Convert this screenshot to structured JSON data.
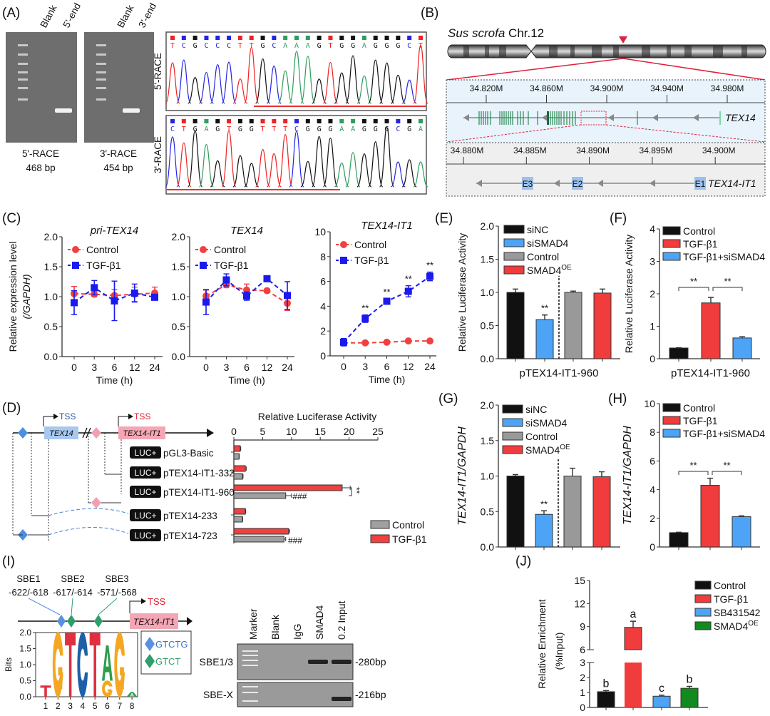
{
  "panels": {
    "A": "(A)",
    "B": "(B)",
    "C": "(C)",
    "D": "(D)",
    "E": "(E)",
    "F": "(F)",
    "G": "(G)",
    "H": "(H)",
    "I": "(I)",
    "J": "(J)"
  },
  "panel_a": {
    "gel1_lanes": [
      "Blank",
      "5'-end"
    ],
    "gel2_lanes": [
      "Blank",
      "3'-end"
    ],
    "gel1_caption": [
      "5'-RACE",
      "468 bp"
    ],
    "gel2_caption": [
      "3'-RACE",
      "454 bp"
    ],
    "race5_label": "5'-RACE",
    "race3_label": "3'-RACE",
    "race5_sequence": "TCGCCCTTGCAAAGTGGAGGGCT",
    "race3_sequence": "CTGAGTGGTTTCGGGAAGGGCGA",
    "base_colors": {
      "A": "#2e9e5b",
      "C": "#2424e6",
      "G": "#111111",
      "T": "#ee2222"
    }
  },
  "panel_b": {
    "species": "Sus scrofa",
    "chromosome": "Chr.12",
    "track1_ticks": [
      "34.820M",
      "34.860M",
      "34.900M",
      "34.940M",
      "34.980M"
    ],
    "track1_gene": "TEX14",
    "track2_ticks": [
      "34.880M",
      "34.885M",
      "34.890M",
      "34.895M",
      "34.900M"
    ],
    "track2_gene": "TEX14-IT1",
    "exons": [
      "E3",
      "E2",
      "E1"
    ]
  },
  "panel_d": {
    "tss": "TSS",
    "gene1": "TEX14",
    "gene2": "TEX14-IT1",
    "luc": "LUC+"
  },
  "panel_i": {
    "sbe": [
      {
        "name": "SBE1",
        "pos": "-622/-618"
      },
      {
        "name": "SBE2",
        "pos": "-617/-614"
      },
      {
        "name": "SBE3",
        "pos": "-571/-568"
      }
    ],
    "tss": "TSS",
    "gene": "TEX14-IT1",
    "logo_ylabel": "Bits",
    "logo_yticks": [
      "0.0",
      "0.5",
      "1.0",
      "1.5",
      "2.0"
    ],
    "logo_xticks": [
      "1",
      "2",
      "3",
      "4",
      "5",
      "6",
      "7",
      "8"
    ],
    "motif_legend": [
      {
        "label": "GTCTG",
        "color": "#5b8fe0"
      },
      {
        "label": "GTCT",
        "color": "#2e9e6b"
      }
    ],
    "gel_lanes": [
      "Marker",
      "Blank",
      "IgG",
      "SMAD4",
      "0.2 Input"
    ],
    "gel_rows": [
      {
        "label": "SBE1/3",
        "size": "-280bp"
      },
      {
        "label": "SBE-X",
        "size": "-216bp"
      }
    ]
  },
  "chart_data": [
    {
      "id": "C1",
      "type": "line",
      "title": "pri-TEX14",
      "xlabel": "Time (h)",
      "ylabel": "Relative expression level",
      "ylabel2": "(/GAPDH)",
      "categories": [
        "0",
        "3",
        "6",
        "12",
        "24"
      ],
      "ylim": [
        0,
        2
      ],
      "yticks": [
        "0.0",
        "0.5",
        "1.0",
        "1.5",
        "2.0"
      ],
      "legend": "top-left",
      "series": [
        {
          "name": "Control",
          "color": "#f04040",
          "marker": "circle",
          "values": [
            1.05,
            1.04,
            1.02,
            1.04,
            1.06
          ],
          "errors": [
            0.12,
            0.04,
            0.1,
            0.12,
            0.1
          ]
        },
        {
          "name": "TGF-β1",
          "color": "#1a1aee",
          "marker": "square",
          "values": [
            0.9,
            1.15,
            0.93,
            1.06,
            0.99
          ],
          "errors": [
            0.2,
            0.12,
            0.33,
            0.15,
            0.04
          ]
        }
      ]
    },
    {
      "id": "C2",
      "type": "line",
      "title": "TEX14",
      "xlabel": "Time (h)",
      "categories": [
        "0",
        "3",
        "6",
        "12",
        "24"
      ],
      "ylim": [
        0,
        2
      ],
      "yticks": [
        "0.0",
        "0.5",
        "1.0",
        "1.5",
        "2.0"
      ],
      "legend": "top-left",
      "series": [
        {
          "name": "Control",
          "color": "#f04040",
          "marker": "circle",
          "values": [
            1.01,
            1.2,
            1.11,
            1.1,
            0.89
          ],
          "errors": [
            0.1,
            0.05,
            0.1,
            0.03,
            0.12
          ]
        },
        {
          "name": "TGF-β1",
          "color": "#1a1aee",
          "marker": "square",
          "values": [
            0.91,
            1.28,
            1.01,
            1.3,
            1.02
          ],
          "errors": [
            0.21,
            0.1,
            0.07,
            0.03,
            0.23
          ]
        }
      ]
    },
    {
      "id": "C3",
      "type": "line",
      "title": "TEX14-IT1",
      "xlabel": "Time (h)",
      "categories": [
        "0",
        "3",
        "6",
        "12",
        "24"
      ],
      "ylim": [
        0,
        10
      ],
      "yticks": [
        "0",
        "2",
        "4",
        "6",
        "8",
        "10"
      ],
      "legend": "top-left",
      "annotations": [
        "",
        "**",
        "**",
        "**",
        "**"
      ],
      "series": [
        {
          "name": "Control",
          "color": "#f04040",
          "marker": "circle",
          "values": [
            1.05,
            1.05,
            1.1,
            1.2,
            1.2
          ],
          "errors": [
            0.05,
            0.05,
            0.05,
            0.05,
            0.05
          ]
        },
        {
          "name": "TGF-β1",
          "color": "#1a1aee",
          "marker": "square",
          "values": [
            1.1,
            3.0,
            4.4,
            5.2,
            6.4
          ],
          "errors": [
            0.3,
            0.3,
            0.2,
            0.45,
            0.35
          ]
        }
      ]
    },
    {
      "id": "D",
      "type": "bar",
      "orientation": "horizontal",
      "title": "Relative Luciferase Activity",
      "categories": [
        "pGL3-Basic",
        "pTEX14-IT1-332",
        "pTEX14-IT1-960",
        "pTEX14-233",
        "pTEX14-723"
      ],
      "xlim": [
        0,
        25
      ],
      "xticks": [
        "0",
        "5",
        "10",
        "15",
        "20",
        "25"
      ],
      "legend": "bottom-right",
      "series": [
        {
          "name": "TGF-β1",
          "color": "#f04040",
          "values": [
            1.1,
            2.0,
            18.8,
            2.0,
            9.5
          ],
          "errors": [
            0.1,
            0.15,
            1.4,
            0.05,
            0.2
          ]
        },
        {
          "name": "Control",
          "color": "#a0a0a0",
          "values": [
            0.9,
            1.5,
            9.0,
            1.5,
            8.7
          ],
          "errors": [
            0.05,
            0.1,
            1.0,
            0.05,
            0.3
          ]
        }
      ],
      "annotations": [
        {
          "category": "pTEX14-IT1-960",
          "text": "**"
        },
        {
          "category": "pTEX14-IT1-960",
          "text": "###"
        },
        {
          "category": "pTEX14-723",
          "text": "###"
        }
      ]
    },
    {
      "id": "E",
      "type": "bar",
      "ylabel": "Relative Luciferase Activity",
      "xlabel": "pTEX14-IT1-960",
      "ylim": [
        0,
        2
      ],
      "yticks": [
        "0.0",
        "0.5",
        "1.0",
        "1.5",
        "2.0"
      ],
      "legend": "top-left",
      "categories": [
        {
          "label": "siNC"
        },
        {
          "label": "siSMAD4"
        },
        {
          "label": "Control"
        },
        {
          "label": "SMAD4",
          "sup": "OE"
        }
      ],
      "colors": [
        "#111111",
        "#4da3f5",
        "#999999",
        "#f03c3c"
      ],
      "values": [
        1.0,
        0.59,
        1.0,
        0.99
      ],
      "errors": [
        0.05,
        0.07,
        0.02,
        0.06
      ],
      "annotations": [
        "",
        "**",
        "",
        ""
      ],
      "divider_after": 1
    },
    {
      "id": "F",
      "type": "bar",
      "ylabel": "Relative Luciferase Activity",
      "xlabel": "pTEX14-IT1-960",
      "ylim": [
        0,
        4
      ],
      "yticks": [
        "0",
        "1",
        "2",
        "3",
        "4"
      ],
      "legend": "top-left",
      "categories": [
        {
          "label": "Control"
        },
        {
          "label": "TGF-β1"
        },
        {
          "label": "TGF-β1+siSMAD4"
        }
      ],
      "colors": [
        "#111111",
        "#f03c3c",
        "#4da3f5"
      ],
      "values": [
        0.33,
        1.72,
        0.64
      ],
      "errors": [
        0.01,
        0.17,
        0.04
      ],
      "brackets": [
        {
          "from": 0,
          "to": 1,
          "text": "**"
        },
        {
          "from": 1,
          "to": 2,
          "text": "**"
        }
      ]
    },
    {
      "id": "G",
      "type": "bar",
      "ylabel": "TEX14-IT1/GAPDH",
      "ylim": [
        0,
        2
      ],
      "yticks": [
        "0.0",
        "0.5",
        "1.0",
        "1.5",
        "2.0"
      ],
      "legend": "top-left",
      "categories": [
        {
          "label": "siNC"
        },
        {
          "label": "siSMAD4"
        },
        {
          "label": "Control"
        },
        {
          "label": "SMAD4",
          "sup": "OE"
        }
      ],
      "colors": [
        "#111111",
        "#4da3f5",
        "#999999",
        "#f03c3c"
      ],
      "values": [
        1.0,
        0.46,
        1.0,
        0.99
      ],
      "errors": [
        0.02,
        0.05,
        0.11,
        0.07
      ],
      "annotations": [
        "",
        "**",
        "",
        ""
      ],
      "divider_after": 1
    },
    {
      "id": "H",
      "type": "bar",
      "ylabel": "TEX14-IT1/GAPDH",
      "ylim": [
        0,
        10
      ],
      "yticks": [
        "0",
        "2",
        "4",
        "6",
        "8",
        "10"
      ],
      "legend": "top-left",
      "categories": [
        {
          "label": "Control"
        },
        {
          "label": "TGF-β1"
        },
        {
          "label": "TGF-β1+siSMAD4"
        }
      ],
      "colors": [
        "#111111",
        "#f03c3c",
        "#4da3f5"
      ],
      "values": [
        1.0,
        4.3,
        2.12
      ],
      "errors": [
        0.03,
        0.5,
        0.05
      ],
      "brackets": [
        {
          "from": 0,
          "to": 1,
          "text": "**"
        },
        {
          "from": 1,
          "to": 2,
          "text": "**"
        }
      ]
    },
    {
      "id": "J",
      "type": "bar",
      "ylabel": "Relative Enrichment",
      "ylabel2": "(%Input)",
      "ylim": [
        0,
        15
      ],
      "axis_break": [
        3,
        6
      ],
      "yticks": [
        "0",
        "1",
        "2",
        "3",
        "6",
        "9",
        "12",
        "15"
      ],
      "legend": "top-right",
      "categories": [
        {
          "label": "Control"
        },
        {
          "label": "TGF-β1"
        },
        {
          "label": "SB431542"
        },
        {
          "label": "SMAD4",
          "sup": "OE"
        }
      ],
      "colors": [
        "#111111",
        "#f03c3c",
        "#4da3f5",
        "#138a1f"
      ],
      "values": [
        1.05,
        8.9,
        0.75,
        1.28
      ],
      "errors": [
        0.08,
        0.8,
        0.07,
        0.13
      ],
      "annotations": [
        "b",
        "a",
        "c",
        "b"
      ]
    }
  ]
}
